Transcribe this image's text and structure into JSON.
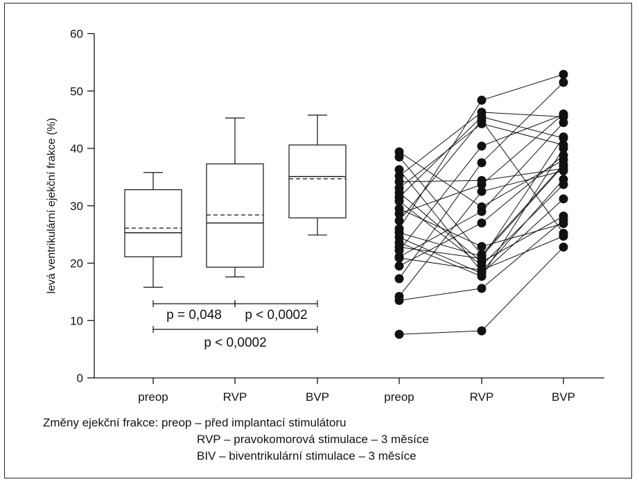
{
  "chart_data": {
    "type": "box",
    "ylabel": "levá ventrikulární ejekční frakce (%)",
    "ylim": [
      0,
      60
    ],
    "yticks": [
      "0",
      "10",
      "20",
      "30",
      "40",
      "50",
      "60"
    ],
    "categories": [
      "preop",
      "RVP",
      "BVP",
      "preop",
      "RVP",
      "BVP"
    ],
    "boxes": [
      {
        "name": "preop",
        "min": 15.8,
        "q1": 21.1,
        "median": 25.3,
        "mean": 26.1,
        "q3": 32.8,
        "max": 35.8
      },
      {
        "name": "RVP",
        "min": 17.6,
        "q1": 19.3,
        "median": 27.0,
        "mean": 28.4,
        "q3": 37.3,
        "max": 45.3
      },
      {
        "name": "BVP",
        "min": 24.9,
        "q1": 27.9,
        "median": 35.1,
        "mean": 34.7,
        "q3": 40.6,
        "max": 45.8
      }
    ],
    "comparisons": [
      {
        "from": "preop",
        "to": "RVP",
        "label": "p = 0,048"
      },
      {
        "from": "RVP",
        "to": "BVP",
        "label": "p < 0,0002"
      },
      {
        "from": "preop",
        "to": "BVP",
        "label": "p < 0,0002"
      }
    ],
    "patients": [
      [
        39.4,
        29.8,
        38.0
      ],
      [
        38.5,
        21.5,
        37.2
      ],
      [
        36.3,
        18.5,
        34.6
      ],
      [
        35.2,
        46.3,
        45.5
      ],
      [
        34.2,
        34.4,
        36.5
      ],
      [
        33.1,
        44.3,
        40.6
      ],
      [
        32.3,
        20.2,
        28.2
      ],
      [
        31.5,
        45.5,
        41.8
      ],
      [
        30.8,
        19.6,
        33.7
      ],
      [
        29.5,
        22.9,
        26.9
      ],
      [
        28.6,
        33.7,
        46.0
      ],
      [
        27.4,
        44.9,
        25.2
      ],
      [
        26.0,
        48.4,
        52.9
      ],
      [
        25.3,
        21.2,
        37.0
      ],
      [
        24.5,
        18.2,
        31.2
      ],
      [
        23.6,
        17.7,
        40.0
      ],
      [
        22.8,
        20.8,
        42.0
      ],
      [
        22.2,
        40.4,
        45.9
      ],
      [
        21.1,
        29.0,
        44.5
      ],
      [
        20.9,
        18.8,
        24.7
      ],
      [
        19.5,
        27.0,
        38.8
      ],
      [
        17.3,
        37.5,
        51.5
      ],
      [
        14.2,
        32.5,
        36.1
      ],
      [
        13.5,
        15.6,
        27.5
      ],
      [
        7.6,
        8.2,
        22.8
      ]
    ]
  },
  "legend": {
    "line1": "Změny ejekční frakce: preop – před implantací stimulátoru",
    "line2": "RVP – pravokomorová stimulace – 3 měsíce",
    "line3": "BIV – biventrikulární stimulace – 3 měsíce"
  },
  "colors": {
    "ink": "#111111",
    "dot": "#111111"
  }
}
